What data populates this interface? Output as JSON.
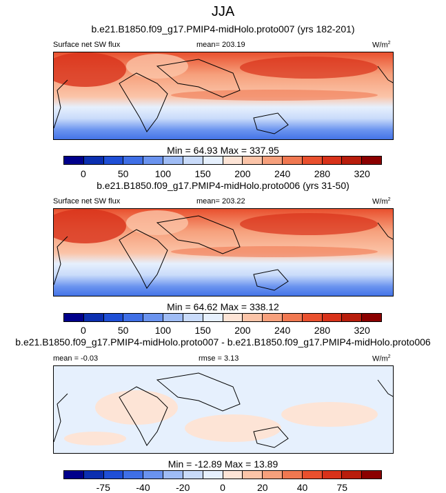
{
  "chart_data": [
    {
      "type": "heatmap",
      "season": "JJA",
      "title": "b.e21.B1850.f09_g17.PMIP4-midHolo.proto007 (yrs 182-201)",
      "variable": "Surface net SW flux",
      "mean_label": "mean= 203.19",
      "units": "W/m",
      "units_sup": "2",
      "min": 64.93,
      "max": 337.95,
      "minmax_label": "Min =  64.93 Max = 337.95",
      "levels": [
        "0",
        "50",
        "100",
        "150",
        "200",
        "240",
        "280",
        "320"
      ],
      "colors": [
        "#00008b",
        "#0b2fb0",
        "#1f4fd6",
        "#3f6fe6",
        "#6a93ef",
        "#9fbcf5",
        "#c9dbfa",
        "#e6f0fd",
        "#fde4d6",
        "#fbc4a8",
        "#f6a07c",
        "#f07851",
        "#e9502e",
        "#d8321a",
        "#b81d0c",
        "#8b0000"
      ]
    },
    {
      "type": "heatmap",
      "title": "b.e21.B1850.f09_g17.PMIP4-midHolo.proto006 (yrs 31-50)",
      "variable": "Surface net SW flux",
      "mean_label": "mean= 203.22",
      "units": "W/m",
      "units_sup": "2",
      "min": 64.62,
      "max": 338.12,
      "minmax_label": "Min =  64.62 Max = 338.12",
      "levels": [
        "0",
        "50",
        "100",
        "150",
        "200",
        "240",
        "280",
        "320"
      ],
      "colors": [
        "#00008b",
        "#0b2fb0",
        "#1f4fd6",
        "#3f6fe6",
        "#6a93ef",
        "#9fbcf5",
        "#c9dbfa",
        "#e6f0fd",
        "#fde4d6",
        "#fbc4a8",
        "#f6a07c",
        "#f07851",
        "#e9502e",
        "#d8321a",
        "#b81d0c",
        "#8b0000"
      ]
    },
    {
      "type": "heatmap",
      "title": "b.e21.B1850.f09_g17.PMIP4-midHolo.proto007 - b.e21.B1850.f09_g17.PMIP4-midHolo.proto006",
      "mean_label": "mean =  -0.03",
      "rmse_label": "rmse =   3.13",
      "units": "W/m",
      "units_sup": "2",
      "min": -12.89,
      "max": 13.89,
      "minmax_label": "Min = -12.89 Max =  13.89",
      "levels": [
        "-75",
        "-40",
        "-20",
        "0",
        "20",
        "40",
        "75"
      ],
      "colors": [
        "#00008b",
        "#0b2fb0",
        "#1f4fd6",
        "#3f6fe6",
        "#6a93ef",
        "#9fbcf5",
        "#c9dbfa",
        "#e6f0fd",
        "#fde4d6",
        "#fbc4a8",
        "#f6a07c",
        "#f07851",
        "#e9502e",
        "#d8321a",
        "#b81d0c",
        "#8b0000"
      ]
    }
  ]
}
